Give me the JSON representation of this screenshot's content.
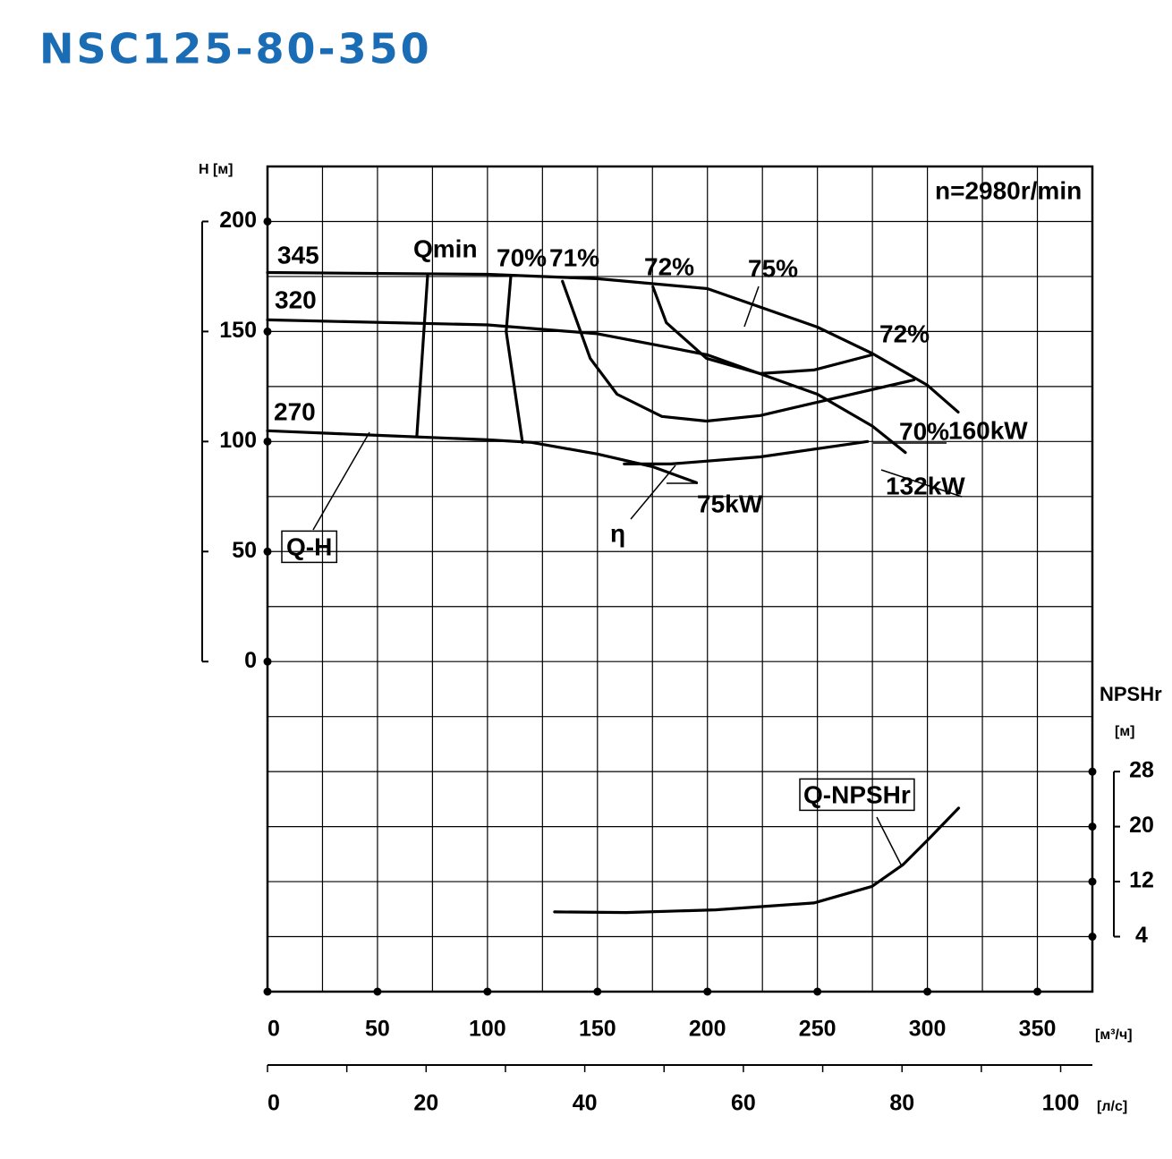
{
  "chart_data": {
    "type": "line",
    "title": "NSC125-80-350",
    "annotations": [
      "n=2980r/min",
      "Q-H",
      "η",
      "160kW",
      "132kW",
      "75kW",
      "75%"
    ],
    "x_label": "[м³/ч]",
    "x2_label": "[л/с]",
    "y_label": "H [м]",
    "y2_label": "NPSHr",
    "y2_unit": "[м]",
    "xlim": [
      0,
      375
    ],
    "xticks": [
      0,
      50,
      100,
      150,
      200,
      250,
      300,
      350
    ],
    "x2lim": [
      0,
      104
    ],
    "x2ticks": [
      0,
      20,
      40,
      60,
      80,
      100
    ],
    "ylim": [
      -150,
      225
    ],
    "yticks": [
      0,
      50,
      100,
      150,
      200
    ],
    "y2lim": [
      -4,
      116
    ],
    "y2ticks": [
      4,
      12,
      20,
      28
    ],
    "grid": true,
    "color": "#000000",
    "title_color": "#1a6db5",
    "series": [
      {
        "name": "345",
        "x": [
          0,
          100,
          150,
          200,
          250,
          275,
          300,
          314
        ],
        "values": [
          176.8,
          176,
          174,
          169.5,
          152,
          140,
          125.6,
          113.4
        ]
      },
      {
        "name": "320",
        "x": [
          0,
          100,
          150,
          200,
          250,
          275,
          290
        ],
        "values": [
          155.3,
          153,
          149,
          139.4,
          121.5,
          107,
          95
        ]
      },
      {
        "name": "270",
        "x": [
          0,
          50,
          100,
          120,
          150,
          175,
          195
        ],
        "values": [
          104.9,
          102.8,
          100.8,
          99.6,
          94.3,
          88.6,
          81.3
        ]
      },
      {
        "name": "Qmin",
        "x": [
          72.8,
          67.9
        ],
        "values": [
          175.6,
          102.4
        ]
      },
      {
        "name": "70%",
        "x": [
          110.6,
          108.5,
          115.9,
          null,
          162.2,
          183.3,
          224,
          272.8
        ],
        "values": [
          174.8,
          150,
          99.6,
          null,
          89.8,
          89.8,
          93,
          100
        ]
      },
      {
        "name": "71%",
        "x": [
          134.1,
          146.7,
          158.9,
          179.3,
          199.6,
          224,
          248.4,
          293.9
        ],
        "values": [
          172.8,
          137.8,
          121.5,
          111.4,
          109.3,
          111.8,
          117.5,
          128
        ]
      },
      {
        "name": "72%",
        "x": [
          175.2,
          181.3,
          199.6,
          224,
          248.4,
          274.8
        ],
        "values": [
          170.3,
          154,
          137.8,
          130.9,
          132.5,
          139.4
        ]
      },
      {
        "name": "Q-NPSHr",
        "axis": "y2",
        "x": [
          130.5,
          163,
          203.7,
          248.4,
          274.8,
          289,
          301.2,
          314.2
        ],
        "values": [
          7.6,
          7.5,
          7.9,
          8.9,
          11.3,
          14.5,
          18.4,
          22.7
        ]
      }
    ]
  }
}
